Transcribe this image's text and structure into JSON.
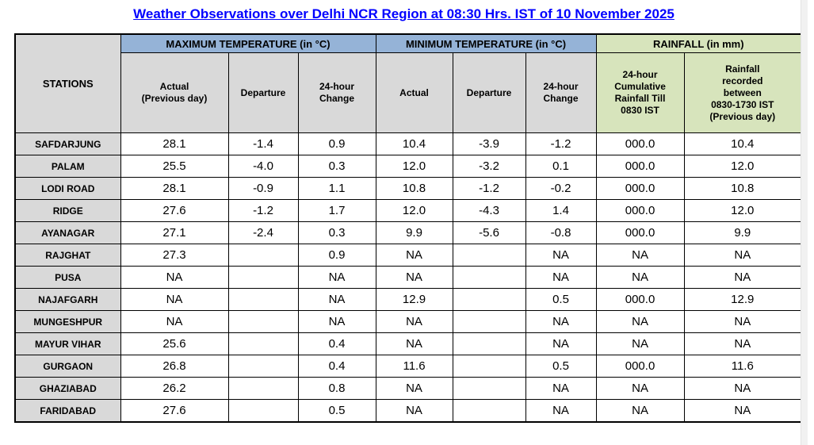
{
  "title": "Weather Observations over Delhi NCR Region at 08:30 Hrs. IST of 10 November 2025",
  "colors": {
    "title_blue": "#0000ff",
    "temp_header_blue": "#95b3d7",
    "rainfall_header_green": "#d7e4bc",
    "stations_gray": "#d9d9d9"
  },
  "table": {
    "stations_header": "STATIONS",
    "groups": [
      {
        "label": "MAXIMUM TEMPERATURE (in °C)"
      },
      {
        "label": "MINIMUM TEMPERATURE (in °C)"
      },
      {
        "label": "RAINFALL (in mm)"
      }
    ],
    "subheaders": [
      "Actual\n(Previous day)",
      "Departure",
      "24-hour\nChange",
      "Actual",
      "Departure",
      "24-hour\nChange",
      "24-hour\nCumulative\nRainfall Till\n0830 IST",
      "Rainfall\nrecorded\nbetween\n0830-1730 IST\n(Previous day)"
    ],
    "rows": [
      {
        "station": "SAFDARJUNG",
        "max_actual": "28.1",
        "max_departure": "-1.4",
        "max_change": "0.9",
        "min_actual": "10.4",
        "min_departure": "-3.9",
        "min_change": "-1.2",
        "rain_cumulative": "000.0",
        "rain_recorded": "10.4"
      },
      {
        "station": "PALAM",
        "max_actual": "25.5",
        "max_departure": "-4.0",
        "max_change": "0.3",
        "min_actual": "12.0",
        "min_departure": "-3.2",
        "min_change": "0.1",
        "rain_cumulative": "000.0",
        "rain_recorded": "12.0"
      },
      {
        "station": "LODI ROAD",
        "max_actual": "28.1",
        "max_departure": "-0.9",
        "max_change": "1.1",
        "min_actual": "10.8",
        "min_departure": "-1.2",
        "min_change": "-0.2",
        "rain_cumulative": "000.0",
        "rain_recorded": "10.8"
      },
      {
        "station": "RIDGE",
        "max_actual": "27.6",
        "max_departure": "-1.2",
        "max_change": "1.7",
        "min_actual": "12.0",
        "min_departure": "-4.3",
        "min_change": "1.4",
        "rain_cumulative": "000.0",
        "rain_recorded": "12.0"
      },
      {
        "station": "AYANAGAR",
        "max_actual": "27.1",
        "max_departure": "-2.4",
        "max_change": "0.3",
        "min_actual": "9.9",
        "min_departure": "-5.6",
        "min_change": "-0.8",
        "rain_cumulative": "000.0",
        "rain_recorded": "9.9"
      },
      {
        "station": "RAJGHAT",
        "max_actual": "27.3",
        "max_departure": "",
        "max_change": "0.9",
        "min_actual": "NA",
        "min_departure": "",
        "min_change": "NA",
        "rain_cumulative": "NA",
        "rain_recorded": "NA"
      },
      {
        "station": "PUSA",
        "max_actual": "NA",
        "max_departure": "",
        "max_change": "NA",
        "min_actual": "NA",
        "min_departure": "",
        "min_change": "NA",
        "rain_cumulative": "NA",
        "rain_recorded": "NA"
      },
      {
        "station": "NAJAFGARH",
        "max_actual": "NA",
        "max_departure": "",
        "max_change": "NA",
        "min_actual": "12.9",
        "min_departure": "",
        "min_change": "0.5",
        "rain_cumulative": "000.0",
        "rain_recorded": "12.9"
      },
      {
        "station": "MUNGESHPUR",
        "max_actual": "NA",
        "max_departure": "",
        "max_change": "NA",
        "min_actual": "NA",
        "min_departure": "",
        "min_change": "NA",
        "rain_cumulative": "NA",
        "rain_recorded": "NA"
      },
      {
        "station": "MAYUR VIHAR",
        "max_actual": "25.6",
        "max_departure": "",
        "max_change": "0.4",
        "min_actual": "NA",
        "min_departure": "",
        "min_change": "NA",
        "rain_cumulative": "NA",
        "rain_recorded": "NA"
      },
      {
        "station": "GURGAON",
        "max_actual": "26.8",
        "max_departure": "",
        "max_change": "0.4",
        "min_actual": "11.6",
        "min_departure": "",
        "min_change": "0.5",
        "rain_cumulative": "000.0",
        "rain_recorded": "11.6"
      },
      {
        "station": "GHAZIABAD",
        "max_actual": "26.2",
        "max_departure": "",
        "max_change": "0.8",
        "min_actual": "NA",
        "min_departure": "",
        "min_change": "NA",
        "rain_cumulative": "NA",
        "rain_recorded": "NA"
      },
      {
        "station": "FARIDABAD",
        "max_actual": "27.6",
        "max_departure": "",
        "max_change": "0.5",
        "min_actual": "NA",
        "min_departure": "",
        "min_change": "NA",
        "rain_cumulative": "NA",
        "rain_recorded": "NA"
      }
    ]
  }
}
